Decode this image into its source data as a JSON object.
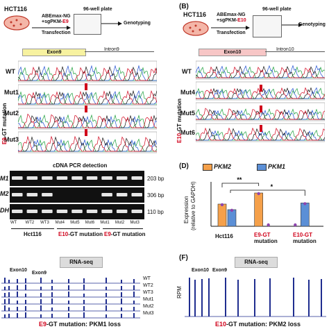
{
  "panelA": {
    "cell_line": "HCT116",
    "plate": "96-well plate",
    "reagent1": "ABEmax-NG",
    "reagent2_prefix": "+sgPKM-",
    "reagent2_suffix": "E9",
    "transfection": "Transfection",
    "genotyping": "Genotyping",
    "exon": "Exon9",
    "intron": "Intron9",
    "rows": [
      "WT",
      "Mut1",
      "Mut2",
      "Mut3"
    ],
    "side_label_prefix": "E9",
    "side_label_suffix": "-GT mutation"
  },
  "panelB": {
    "letter": "(B)",
    "cell_line": "HCT116",
    "plate": "96-well plate",
    "reagent1": "ABEmax-NG",
    "reagent2_prefix": "+sgPKM-",
    "reagent2_suffix": "E10",
    "transfection": "Transfection",
    "genotyping": "Genotyping",
    "exon": "Exon10",
    "intron": "Intron10",
    "rows": [
      "WT",
      "Mut4",
      "Mut5",
      "Mut6"
    ],
    "side_label_prefix": "E10",
    "side_label_suffix": "-GT mutation"
  },
  "panelC": {
    "title": "cDNA PCR detection",
    "row_labels": [
      "M1",
      "M2",
      "DH"
    ],
    "sizes": [
      "203 bp",
      "306 bp",
      "110 bp"
    ],
    "lanes": [
      "WT",
      "WT2",
      "WT3",
      "Mut4",
      "Mut5",
      "Mut6",
      "Mut1",
      "Mut2",
      "Mut3"
    ],
    "group1": "Hct116",
    "group2_red": "E10",
    "group2_rest": "-GT mutation",
    "group3_red": "E9",
    "group3_rest": "-GT mutation"
  },
  "panelD": {
    "letter": "(D)",
    "legend": [
      "PKM2",
      "PKM1"
    ],
    "ylabel1": "Expression",
    "ylabel2": "(relative to GAPDH)",
    "sig1": "**",
    "sig2": "*",
    "groups": [
      "Hct116",
      "E9-GT",
      "E10-GT"
    ],
    "group_suffix": "mutation",
    "colors": {
      "PKM2": "#f5a04a",
      "PKM1": "#5b8fd6"
    }
  },
  "chart_data": {
    "type": "bar",
    "categories": [
      "Hct116",
      "E9-GT mutation",
      "E10-GT mutation"
    ],
    "series": [
      {
        "name": "PKM2",
        "values": [
          1.0,
          1.5,
          0.0
        ]
      },
      {
        "name": "PKM1",
        "values": [
          0.75,
          0.0,
          1.05
        ]
      }
    ],
    "ylabel": "Expression (relative to GAPDH)",
    "ylim": [
      0,
      2.0
    ]
  },
  "panelE": {
    "title": "RNA-seq",
    "exon10": "Exon10",
    "exon9": "Exon9",
    "tracks": [
      "WT",
      "WT2",
      "WT3",
      "Mut1",
      "Mut2",
      "Mut3"
    ],
    "caption_red": "E9",
    "caption_rest": "-GT mutation: PKM1 loss"
  },
  "panelF": {
    "letter": "(F)",
    "title": "RNA-seq",
    "exon10": "Exon10",
    "exon9": "Exon9",
    "ylabel": "RPM",
    "caption_red": "E10",
    "caption_rest": "-GT mutation: PKM2 loss"
  }
}
